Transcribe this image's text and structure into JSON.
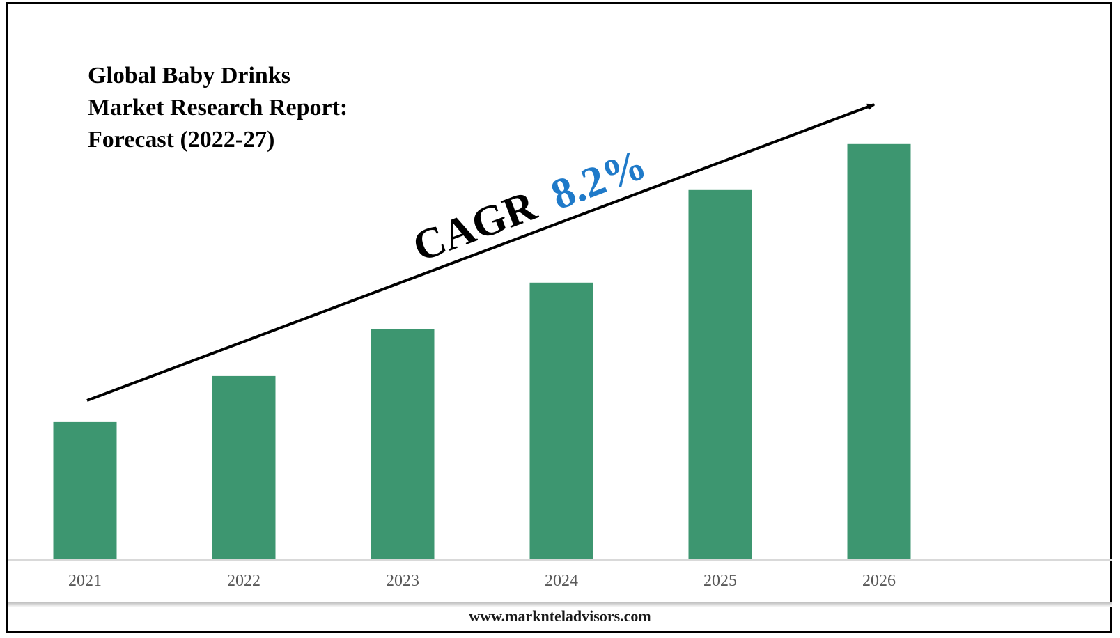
{
  "chart_data": {
    "type": "bar",
    "title_lines": [
      "Global Baby Drinks",
      "Market Research Report:",
      "Forecast (2022-27)"
    ],
    "categories": [
      "2021",
      "2022",
      "2023",
      "2024",
      "2025",
      "2026"
    ],
    "values": [
      200,
      267,
      335,
      403,
      538,
      605
    ],
    "ylim": [
      0,
      620
    ],
    "bar_color": "#3d9670",
    "grid": false,
    "annotation": {
      "label": "CAGR",
      "value": "8.2%",
      "label_color": "#000000",
      "value_color": "#1f7ac9"
    }
  },
  "footer": {
    "url": "www.marknteladvisors.com"
  }
}
